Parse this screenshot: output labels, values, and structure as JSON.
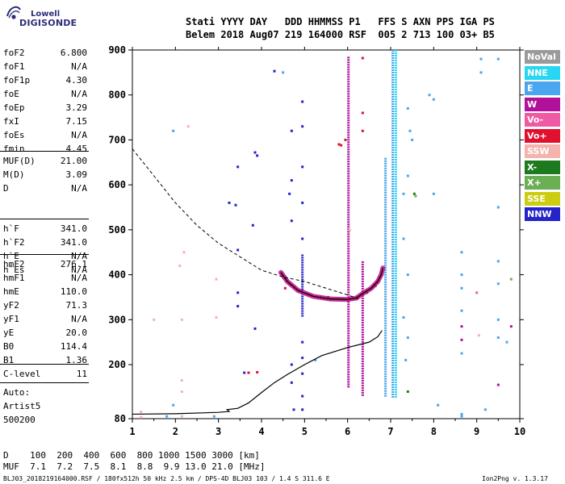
{
  "logo": {
    "line1": "Lowell",
    "line2": "DIGISONDE"
  },
  "header": {
    "line1": "Stati YYYY DAY   DDD HHMMSS P1   FFS S AXN PPS IGA PS",
    "line2": "Belem 2018 Aug07 219 164000 RSF  005 2 713 100 03+ B5"
  },
  "params": {
    "group1": [
      {
        "key": "foF2",
        "value": "6.800"
      },
      {
        "key": "foF1",
        "value": "N/A"
      },
      {
        "key": "foF1p",
        "value": "4.30"
      },
      {
        "key": "foE",
        "value": "N/A"
      },
      {
        "key": "foEp",
        "value": "3.29"
      },
      {
        "key": "fxI",
        "value": "7.15"
      },
      {
        "key": "foEs",
        "value": "N/A"
      },
      {
        "key": "fmin",
        "value": "4.45"
      }
    ],
    "group2": [
      {
        "key": "MUF(D)",
        "value": "21.00"
      },
      {
        "key": "M(D)",
        "value": "3.09"
      },
      {
        "key": "D",
        "value": "N/A"
      }
    ],
    "group3": [
      {
        "key": "h`F",
        "value": "341.0"
      },
      {
        "key": "h`F2",
        "value": "341.0"
      },
      {
        "key": "h`E",
        "value": "N/A"
      },
      {
        "key": "h`Es",
        "value": "N/A"
      }
    ],
    "group4": [
      {
        "key": "hmF2",
        "value": "276.1"
      },
      {
        "key": "hmF1",
        "value": "N/A"
      },
      {
        "key": "hmE",
        "value": "110.0"
      },
      {
        "key": "yF2",
        "value": "71.3"
      },
      {
        "key": "yF1",
        "value": "N/A"
      },
      {
        "key": "yE",
        "value": "20.0"
      },
      {
        "key": "B0",
        "value": "114.4"
      },
      {
        "key": "B1",
        "value": "1.36"
      }
    ],
    "group5": [
      {
        "key": "C-level",
        "value": "11"
      }
    ]
  },
  "auto": {
    "line1": "Auto:",
    "line2": "Artist5",
    "line3": "500200"
  },
  "legend": [
    {
      "label": "NoVal",
      "color": "#9a9a9a"
    },
    {
      "label": "NNE",
      "color": "#27d6f0"
    },
    {
      "label": "E",
      "color": "#4aa6ee"
    },
    {
      "label": "W",
      "color": "#b0109a"
    },
    {
      "label": "Vo-",
      "color": "#ef5aa4"
    },
    {
      "label": "Vo+",
      "color": "#e0102e"
    },
    {
      "label": "SSW",
      "color": "#f5b3ad"
    },
    {
      "label": "X-",
      "color": "#1e7a1e"
    },
    {
      "label": "X+",
      "color": "#6cae54"
    },
    {
      "label": "SSE",
      "color": "#cccc10"
    },
    {
      "label": "NNW",
      "color": "#2424c8"
    }
  ],
  "dmuf": {
    "d_line": "D    100  200  400  600  800 1000 1500 3000 [km]",
    "muf_line": "MUF  7.1  7.2  7.5  8.1  8.8  9.9 13.0 21.0 [MHz]"
  },
  "footer": {
    "left": "BLJ03_2018219164000.RSF / 180fx512h 50 kHz 2.5 km / DPS-4D BLJ03 103 / 1.4 S 311.6 E",
    "right": "Ion2Png v. 1.3.17"
  },
  "chart_data": {
    "type": "scatter",
    "xlim": [
      1,
      10
    ],
    "ylim": [
      80,
      900
    ],
    "x_ticks": [
      1,
      2,
      3,
      4,
      5,
      6,
      7,
      8,
      9,
      10
    ],
    "y_ticks": [
      80,
      200,
      300,
      400,
      500,
      600,
      700,
      800,
      900
    ],
    "x_tick_labels": [
      "1",
      "2",
      "3",
      "4",
      "5",
      "6",
      "7",
      "8",
      "9",
      "10"
    ],
    "y_tick_labels": [
      "80",
      "200",
      "300",
      "400",
      "500",
      "600",
      "700",
      "800",
      "900"
    ],
    "grid": false,
    "legend_position": "right",
    "profile_curve": [
      [
        1.0,
        90
      ],
      [
        2.0,
        91
      ],
      [
        3.0,
        94
      ],
      [
        3.25,
        96
      ],
      [
        3.2,
        100
      ],
      [
        3.45,
        103
      ],
      [
        3.7,
        115
      ],
      [
        4.0,
        138
      ],
      [
        4.3,
        160
      ],
      [
        4.6,
        178
      ],
      [
        5.0,
        200
      ],
      [
        5.4,
        220
      ],
      [
        6.0,
        238
      ],
      [
        6.5,
        250
      ],
      [
        6.7,
        262
      ],
      [
        6.8,
        276
      ]
    ],
    "dashed_curve": [
      [
        1.0,
        680
      ],
      [
        1.5,
        620
      ],
      [
        2.0,
        560
      ],
      [
        2.5,
        510
      ],
      [
        3.0,
        470
      ],
      [
        3.5,
        440
      ],
      [
        4.0,
        410
      ],
      [
        4.5,
        395
      ],
      [
        5.0,
        385
      ],
      [
        5.5,
        370
      ],
      [
        6.0,
        355
      ],
      [
        6.3,
        345
      ]
    ],
    "trace_black": [
      [
        4.45,
        405
      ],
      [
        4.6,
        385
      ],
      [
        4.85,
        365
      ],
      [
        5.2,
        352
      ],
      [
        5.6,
        346
      ],
      [
        6.0,
        345
      ],
      [
        6.2,
        348
      ],
      [
        6.35,
        358
      ],
      [
        6.55,
        370
      ],
      [
        6.7,
        385
      ],
      [
        6.78,
        400
      ],
      [
        6.82,
        415
      ]
    ],
    "vertical_bands": [
      {
        "x": 4.95,
        "y0": 310,
        "y1": 445,
        "color": "#2424c8"
      },
      {
        "x": 6.02,
        "y0": 150,
        "y1": 885,
        "color": "#b0109a"
      },
      {
        "x": 6.35,
        "y0": 130,
        "y1": 430,
        "color": "#b0109a"
      },
      {
        "x": 6.88,
        "y0": 130,
        "y1": 660,
        "color": "#4aa6ee"
      },
      {
        "x": 7.05,
        "y0": 130,
        "y1": 900,
        "color": "#4aa6ee"
      },
      {
        "x": 7.12,
        "y0": 130,
        "y1": 900,
        "color": "#27d6f0"
      }
    ],
    "scatter_points": [
      {
        "x": 1.2,
        "y": 83,
        "c": "#f5b3ad"
      },
      {
        "x": 1.2,
        "y": 95,
        "c": "#f5b3ad"
      },
      {
        "x": 1.5,
        "y": 300,
        "c": "#f5b3ad"
      },
      {
        "x": 1.8,
        "y": 85,
        "c": "#4aa6ee"
      },
      {
        "x": 1.95,
        "y": 110,
        "c": "#4aa6ee"
      },
      {
        "x": 1.95,
        "y": 720,
        "c": "#4aa6ee"
      },
      {
        "x": 2.1,
        "y": 420,
        "c": "#f5b3ad"
      },
      {
        "x": 2.2,
        "y": 450,
        "c": "#f5b3ad"
      },
      {
        "x": 2.3,
        "y": 730,
        "c": "#f5b3ad"
      },
      {
        "x": 2.15,
        "y": 300,
        "c": "#f5b3ad"
      },
      {
        "x": 2.15,
        "y": 165,
        "c": "#f5b3ad"
      },
      {
        "x": 2.15,
        "y": 140,
        "c": "#f5b3ad"
      },
      {
        "x": 2.15,
        "y": 85,
        "c": "#f5b3ad"
      },
      {
        "x": 2.9,
        "y": 85,
        "c": "#4aa6ee"
      },
      {
        "x": 2.95,
        "y": 305,
        "c": "#f5b3ad"
      },
      {
        "x": 2.95,
        "y": 390,
        "c": "#f5b3ad"
      },
      {
        "x": 3.25,
        "y": 560,
        "c": "#2424c8"
      },
      {
        "x": 3.4,
        "y": 555,
        "c": "#2424c8"
      },
      {
        "x": 3.45,
        "y": 640,
        "c": "#2424c8"
      },
      {
        "x": 3.45,
        "y": 455,
        "c": "#2424c8"
      },
      {
        "x": 3.45,
        "y": 360,
        "c": "#2424c8"
      },
      {
        "x": 3.45,
        "y": 330,
        "c": "#2424c8"
      },
      {
        "x": 3.8,
        "y": 510,
        "c": "#2424c8"
      },
      {
        "x": 3.85,
        "y": 280,
        "c": "#2424c8"
      },
      {
        "x": 3.85,
        "y": 672,
        "c": "#2424c8"
      },
      {
        "x": 3.9,
        "y": 665,
        "c": "#2424c8"
      },
      {
        "x": 3.9,
        "y": 183,
        "c": "#e0102e"
      },
      {
        "x": 3.7,
        "y": 182,
        "c": "#e0102e"
      },
      {
        "x": 3.6,
        "y": 182,
        "c": "#2424c8"
      },
      {
        "x": 4.3,
        "y": 853,
        "c": "#2424c8"
      },
      {
        "x": 4.5,
        "y": 850,
        "c": "#4aa6ee"
      },
      {
        "x": 4.65,
        "y": 580,
        "c": "#2424c8"
      },
      {
        "x": 4.7,
        "y": 720,
        "c": "#2424c8"
      },
      {
        "x": 4.7,
        "y": 610,
        "c": "#2424c8"
      },
      {
        "x": 4.7,
        "y": 520,
        "c": "#2424c8"
      },
      {
        "x": 4.7,
        "y": 200,
        "c": "#2424c8"
      },
      {
        "x": 4.75,
        "y": 100,
        "c": "#2424c8"
      },
      {
        "x": 4.7,
        "y": 160,
        "c": "#2424c8"
      },
      {
        "x": 4.55,
        "y": 370,
        "c": "#e0102e"
      },
      {
        "x": 4.65,
        "y": 380,
        "c": "#e0102e"
      },
      {
        "x": 4.95,
        "y": 785,
        "c": "#2424c8"
      },
      {
        "x": 4.95,
        "y": 730,
        "c": "#2424c8"
      },
      {
        "x": 4.95,
        "y": 640,
        "c": "#2424c8"
      },
      {
        "x": 4.95,
        "y": 560,
        "c": "#2424c8"
      },
      {
        "x": 4.95,
        "y": 480,
        "c": "#2424c8"
      },
      {
        "x": 4.95,
        "y": 250,
        "c": "#2424c8"
      },
      {
        "x": 4.95,
        "y": 215,
        "c": "#2424c8"
      },
      {
        "x": 4.95,
        "y": 180,
        "c": "#2424c8"
      },
      {
        "x": 4.95,
        "y": 130,
        "c": "#2424c8"
      },
      {
        "x": 4.95,
        "y": 100,
        "c": "#2424c8"
      },
      {
        "x": 5.25,
        "y": 210,
        "c": "#4aa6ee"
      },
      {
        "x": 5.55,
        "y": 350,
        "c": "#1e7a1e"
      },
      {
        "x": 5.8,
        "y": 690,
        "c": "#e0102e"
      },
      {
        "x": 5.85,
        "y": 688,
        "c": "#e0102e"
      },
      {
        "x": 5.95,
        "y": 700,
        "c": "#e0102e"
      },
      {
        "x": 6.35,
        "y": 882,
        "c": "#e0102e"
      },
      {
        "x": 6.35,
        "y": 760,
        "c": "#e0102e"
      },
      {
        "x": 6.35,
        "y": 720,
        "c": "#e0102e"
      },
      {
        "x": 6.05,
        "y": 500,
        "c": "#f5b3ad"
      },
      {
        "x": 6.45,
        "y": 360,
        "c": "#1e7a1e"
      },
      {
        "x": 6.65,
        "y": 375,
        "c": "#6cae54"
      },
      {
        "x": 7.4,
        "y": 140,
        "c": "#1e7a1e"
      },
      {
        "x": 7.55,
        "y": 580,
        "c": "#1e7a1e"
      },
      {
        "x": 7.58,
        "y": 575,
        "c": "#6cae54"
      },
      {
        "x": 7.3,
        "y": 580,
        "c": "#4aa6ee"
      },
      {
        "x": 7.4,
        "y": 770,
        "c": "#4aa6ee"
      },
      {
        "x": 7.45,
        "y": 720,
        "c": "#4aa6ee"
      },
      {
        "x": 7.5,
        "y": 700,
        "c": "#4aa6ee"
      },
      {
        "x": 7.4,
        "y": 620,
        "c": "#4aa6ee"
      },
      {
        "x": 7.3,
        "y": 480,
        "c": "#4aa6ee"
      },
      {
        "x": 7.4,
        "y": 400,
        "c": "#4aa6ee"
      },
      {
        "x": 7.3,
        "y": 305,
        "c": "#4aa6ee"
      },
      {
        "x": 7.4,
        "y": 260,
        "c": "#4aa6ee"
      },
      {
        "x": 7.35,
        "y": 210,
        "c": "#4aa6ee"
      },
      {
        "x": 8.0,
        "y": 580,
        "c": "#4aa6ee"
      },
      {
        "x": 8.0,
        "y": 790,
        "c": "#4aa6ee"
      },
      {
        "x": 7.9,
        "y": 800,
        "c": "#4aa6ee"
      },
      {
        "x": 8.65,
        "y": 450,
        "c": "#4aa6ee"
      },
      {
        "x": 8.65,
        "y": 400,
        "c": "#4aa6ee"
      },
      {
        "x": 8.65,
        "y": 370,
        "c": "#4aa6ee"
      },
      {
        "x": 8.65,
        "y": 320,
        "c": "#4aa6ee"
      },
      {
        "x": 8.65,
        "y": 285,
        "c": "#b0109a"
      },
      {
        "x": 8.65,
        "y": 255,
        "c": "#b0109a"
      },
      {
        "x": 8.65,
        "y": 225,
        "c": "#4aa6ee"
      },
      {
        "x": 8.65,
        "y": 90,
        "c": "#4aa6ee"
      },
      {
        "x": 8.65,
        "y": 85,
        "c": "#4aa6ee"
      },
      {
        "x": 9.0,
        "y": 360,
        "c": "#ef5aa4"
      },
      {
        "x": 9.05,
        "y": 265,
        "c": "#f5b3ad"
      },
      {
        "x": 9.1,
        "y": 850,
        "c": "#4aa6ee"
      },
      {
        "x": 9.1,
        "y": 880,
        "c": "#4aa6ee"
      },
      {
        "x": 9.5,
        "y": 880,
        "c": "#4aa6ee"
      },
      {
        "x": 9.5,
        "y": 550,
        "c": "#4aa6ee"
      },
      {
        "x": 9.5,
        "y": 430,
        "c": "#4aa6ee"
      },
      {
        "x": 9.5,
        "y": 380,
        "c": "#4aa6ee"
      },
      {
        "x": 9.5,
        "y": 300,
        "c": "#4aa6ee"
      },
      {
        "x": 9.5,
        "y": 260,
        "c": "#4aa6ee"
      },
      {
        "x": 9.5,
        "y": 155,
        "c": "#b0109a"
      },
      {
        "x": 9.7,
        "y": 250,
        "c": "#4aa6ee"
      },
      {
        "x": 9.8,
        "y": 390,
        "c": "#6cae54"
      },
      {
        "x": 9.8,
        "y": 285,
        "c": "#b0109a"
      },
      {
        "x": 9.2,
        "y": 100,
        "c": "#4aa6ee"
      },
      {
        "x": 8.1,
        "y": 110,
        "c": "#4aa6ee"
      }
    ]
  }
}
